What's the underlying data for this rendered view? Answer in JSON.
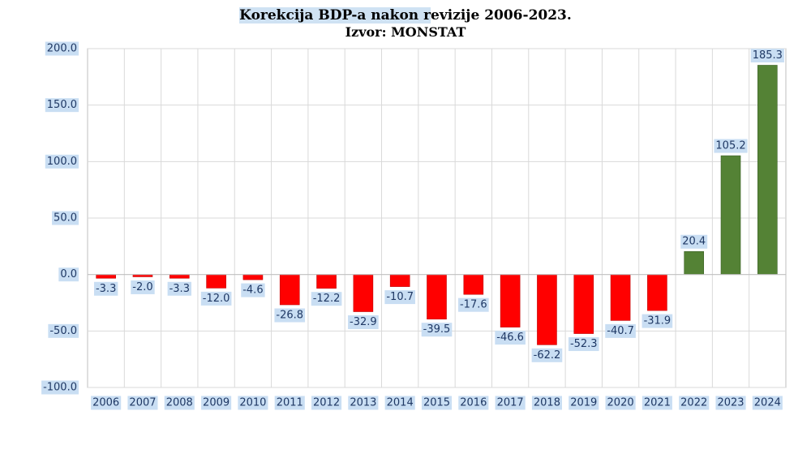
{
  "title_highlight": "Korekcija BDP-a nakon r",
  "title_rest": "evizije 2006-2023.",
  "subtitle": "Izvor: MONSTAT",
  "colors": {
    "negative": "#ff0000",
    "positive": "#548235",
    "label_bg": "#c9def3",
    "label_text": "#1f3864",
    "grid": "#d9d9d9"
  },
  "chart_data": {
    "type": "bar",
    "title": "Korekcija BDP-a nakon revizije 2006-2023.",
    "subtitle": "Izvor: MONSTAT",
    "categories": [
      "2006",
      "2007",
      "2008",
      "2009",
      "2010",
      "2011",
      "2012",
      "2013",
      "2014",
      "2015",
      "2016",
      "2017",
      "2018",
      "2019",
      "2020",
      "2021",
      "2022",
      "2023",
      "2024"
    ],
    "values": [
      -3.3,
      -2.0,
      -3.3,
      -12.0,
      -4.6,
      -26.8,
      -12.2,
      -32.9,
      -10.7,
      -39.5,
      -17.6,
      -46.6,
      -62.2,
      -52.3,
      -40.7,
      -31.9,
      20.4,
      105.2,
      185.3
    ],
    "value_labels": [
      "-3.3",
      "-2.0",
      "-3.3",
      "-12.0",
      "-4.6",
      "-26.8",
      "-12.2",
      "-32.9",
      "-10.7",
      "-39.5",
      "-17.6",
      "-46.6",
      "-62.2",
      "-52.3",
      "-40.7",
      "-31.9",
      "20.4",
      "105.2",
      "185.3"
    ],
    "yticks": [
      200,
      150,
      100,
      50,
      0,
      -50,
      -100
    ],
    "ytick_labels": [
      "200.0",
      "150.0",
      "100.0",
      "50.0",
      "0.0",
      "-50.0",
      "-100.0"
    ],
    "ylim": [
      -100,
      200
    ],
    "grid": true,
    "legend": "none"
  }
}
